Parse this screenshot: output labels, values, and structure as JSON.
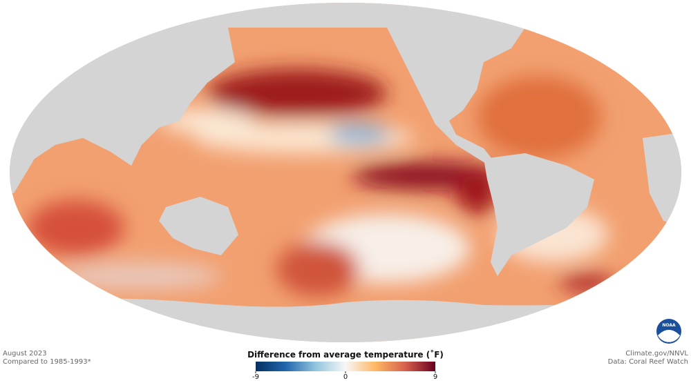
{
  "period": "August 2023",
  "baseline": "Compared to 1985-1993*",
  "credit": "Climate.gov/NNVL",
  "source": "Data: Coral Reef Watch",
  "logo_text": "NOAA",
  "legend": {
    "title": "Difference from average temperature (˚F)",
    "lim": [
      -9,
      9
    ],
    "ticks": [
      -9,
      0,
      9
    ],
    "colormap": [
      "#053061",
      "#2166ac",
      "#92c5de",
      "#f7f7f7",
      "#fdb863",
      "#d6604d",
      "#67001f"
    ]
  }
}
